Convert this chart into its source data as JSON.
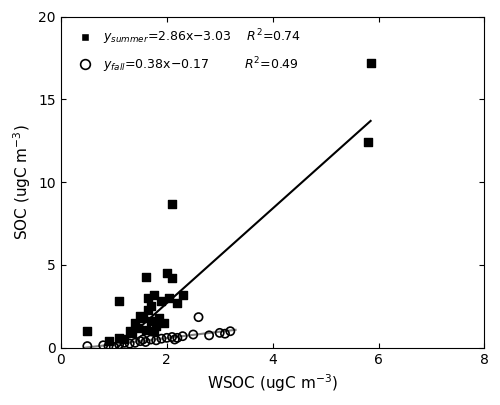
{
  "summer_x": [
    0.5,
    0.9,
    1.1,
    1.1,
    1.2,
    1.3,
    1.35,
    1.4,
    1.45,
    1.5,
    1.55,
    1.6,
    1.6,
    1.65,
    1.65,
    1.7,
    1.7,
    1.75,
    1.75,
    1.8,
    1.85,
    1.9,
    1.95,
    2.0,
    2.05,
    2.1,
    2.1,
    2.2,
    2.3,
    5.8,
    5.85
  ],
  "summer_y": [
    1.0,
    0.4,
    0.6,
    2.8,
    0.5,
    1.0,
    0.9,
    1.5,
    1.2,
    1.9,
    1.8,
    1.1,
    4.3,
    2.3,
    3.0,
    1.6,
    2.5,
    1.0,
    3.2,
    1.3,
    1.8,
    2.8,
    1.5,
    4.5,
    3.0,
    4.2,
    8.7,
    2.7,
    3.2,
    12.4,
    17.2
  ],
  "fall_x": [
    0.5,
    0.8,
    0.9,
    1.0,
    1.1,
    1.2,
    1.3,
    1.4,
    1.5,
    1.55,
    1.6,
    1.7,
    1.8,
    1.9,
    2.0,
    2.1,
    2.15,
    2.2,
    2.3,
    2.5,
    2.6,
    2.8,
    3.0,
    3.1,
    3.2
  ],
  "fall_y": [
    0.1,
    0.15,
    0.1,
    0.05,
    0.2,
    0.3,
    0.25,
    0.3,
    0.4,
    0.5,
    0.35,
    0.5,
    0.45,
    0.55,
    0.6,
    0.65,
    0.5,
    0.6,
    0.7,
    0.8,
    1.85,
    0.75,
    0.9,
    0.85,
    1.0
  ],
  "summer_slope": 2.86,
  "summer_intercept": -3.03,
  "fall_slope": 0.38,
  "fall_intercept": -0.17,
  "summer_line_x": [
    1.06,
    5.85
  ],
  "fall_line_x": [
    0.45,
    3.3
  ],
  "xlim": [
    0,
    8
  ],
  "ylim": [
    0,
    20
  ],
  "xticks": [
    0,
    2,
    4,
    6,
    8
  ],
  "yticks": [
    0,
    5,
    10,
    15,
    20
  ],
  "line_color_summer": "#000000",
  "line_color_fall": "#808080",
  "bg_color": "#ffffff",
  "fontsize_label": 11,
  "fontsize_annot": 9
}
